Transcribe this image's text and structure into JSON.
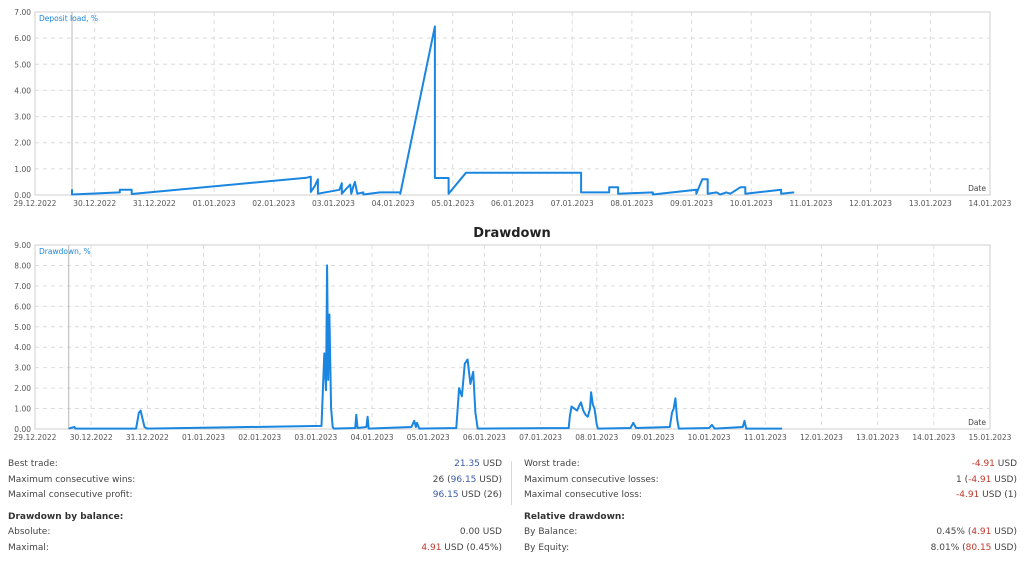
{
  "chart_data": [
    {
      "type": "line",
      "ylabel": "Deposit load, %",
      "xlabel": "Date",
      "ylim": [
        0,
        7
      ],
      "yticks": [
        "0.00",
        "1.00",
        "2.00",
        "3.00",
        "4.00",
        "5.00",
        "6.00",
        "7.00"
      ],
      "xticks": [
        "29.12.2022",
        "30.12.2022",
        "31.12.2022",
        "01.01.2023",
        "02.01.2023",
        "03.01.2023",
        "04.01.2023",
        "05.01.2023",
        "06.01.2023",
        "07.01.2023",
        "08.01.2023",
        "09.01.2023",
        "10.01.2023",
        "11.01.2023",
        "12.01.2023",
        "13.01.2023",
        "14.01.2023"
      ],
      "grid": true,
      "color": "#1a86e0",
      "points": [
        [
          0.62,
          0.22
        ],
        [
          0.62,
          0.02
        ],
        [
          1.42,
          0.1
        ],
        [
          1.42,
          0.2
        ],
        [
          1.62,
          0.2
        ],
        [
          1.62,
          0.04
        ],
        [
          4.55,
          0.66
        ],
        [
          4.62,
          0.7
        ],
        [
          4.62,
          0.12
        ],
        [
          4.69,
          0.35
        ],
        [
          4.74,
          0.6
        ],
        [
          4.74,
          0.05
        ],
        [
          5.1,
          0.2
        ],
        [
          5.14,
          0.45
        ],
        [
          5.14,
          0.05
        ],
        [
          5.28,
          0.4
        ],
        [
          5.3,
          0.05
        ],
        [
          5.33,
          0.3
        ],
        [
          5.36,
          0.5
        ],
        [
          5.4,
          0.05
        ],
        [
          5.5,
          0.1
        ],
        [
          5.5,
          0.02
        ],
        [
          5.78,
          0.1
        ],
        [
          6.12,
          0.1
        ],
        [
          6.12,
          0.05
        ],
        [
          6.7,
          6.45
        ],
        [
          6.7,
          0.65
        ],
        [
          6.93,
          0.65
        ],
        [
          6.93,
          0.05
        ],
        [
          7.22,
          0.85
        ],
        [
          9.15,
          0.85
        ],
        [
          9.15,
          0.1
        ],
        [
          9.62,
          0.1
        ],
        [
          9.62,
          0.3
        ],
        [
          9.77,
          0.3
        ],
        [
          9.77,
          0.05
        ],
        [
          10.35,
          0.1
        ],
        [
          10.35,
          0.02
        ],
        [
          11.08,
          0.2
        ],
        [
          11.08,
          0.05
        ],
        [
          11.18,
          0.6
        ],
        [
          11.27,
          0.6
        ],
        [
          11.27,
          0.05
        ],
        [
          11.42,
          0.1
        ],
        [
          11.48,
          0.02
        ],
        [
          11.58,
          0.1
        ],
        [
          11.65,
          0.05
        ],
        [
          11.82,
          0.3
        ],
        [
          11.9,
          0.3
        ],
        [
          11.9,
          0.05
        ],
        [
          12.5,
          0.2
        ],
        [
          12.5,
          0.05
        ],
        [
          12.72,
          0.1
        ]
      ]
    },
    {
      "type": "line",
      "title": "Drawdown",
      "ylabel": "Drawdown, %",
      "xlabel": "Date",
      "ylim": [
        0,
        9
      ],
      "yticks": [
        "0.00",
        "1.00",
        "2.00",
        "3.00",
        "4.00",
        "5.00",
        "6.00",
        "7.00",
        "8.00",
        "9.00"
      ],
      "xticks": [
        "29.12.2022",
        "30.12.2022",
        "31.12.2022",
        "01.01.2023",
        "02.01.2023",
        "03.01.2023",
        "04.01.2023",
        "05.01.2023",
        "06.01.2023",
        "07.01.2023",
        "08.01.2023",
        "09.01.2023",
        "10.01.2023",
        "11.01.2023",
        "12.01.2023",
        "13.01.2023",
        "14.01.2023",
        "15.01.2023"
      ],
      "grid": true,
      "color": "#1a86e0",
      "points": [
        [
          0.6,
          0.02
        ],
        [
          0.7,
          0.1
        ],
        [
          0.72,
          0.02
        ],
        [
          1.8,
          0.02
        ],
        [
          1.85,
          0.8
        ],
        [
          1.88,
          0.9
        ],
        [
          1.95,
          0.1
        ],
        [
          2.0,
          0.02
        ],
        [
          5.1,
          0.15
        ],
        [
          5.15,
          3.7
        ],
        [
          5.18,
          1.9
        ],
        [
          5.2,
          8.0
        ],
        [
          5.22,
          2.4
        ],
        [
          5.24,
          5.6
        ],
        [
          5.27,
          1.0
        ],
        [
          5.3,
          0.1
        ],
        [
          5.32,
          0.02
        ],
        [
          5.7,
          0.05
        ],
        [
          5.72,
          0.7
        ],
        [
          5.74,
          0.05
        ],
        [
          5.9,
          0.1
        ],
        [
          5.92,
          0.6
        ],
        [
          5.94,
          0.02
        ],
        [
          6.7,
          0.1
        ],
        [
          6.75,
          0.4
        ],
        [
          6.78,
          0.1
        ],
        [
          6.8,
          0.3
        ],
        [
          6.84,
          0.02
        ],
        [
          7.5,
          0.05
        ],
        [
          7.55,
          2.0
        ],
        [
          7.6,
          1.6
        ],
        [
          7.65,
          3.2
        ],
        [
          7.7,
          3.4
        ],
        [
          7.75,
          2.2
        ],
        [
          7.8,
          2.8
        ],
        [
          7.84,
          0.8
        ],
        [
          7.88,
          0.02
        ],
        [
          9.5,
          0.05
        ],
        [
          9.52,
          0.6
        ],
        [
          9.55,
          1.1
        ],
        [
          9.6,
          1.0
        ],
        [
          9.65,
          0.9
        ],
        [
          9.68,
          1.1
        ],
        [
          9.72,
          1.3
        ],
        [
          9.76,
          0.9
        ],
        [
          9.8,
          0.7
        ],
        [
          9.84,
          0.6
        ],
        [
          9.88,
          1.0
        ],
        [
          9.9,
          1.8
        ],
        [
          9.93,
          1.2
        ],
        [
          9.96,
          1.0
        ],
        [
          10.0,
          0.2
        ],
        [
          10.02,
          0.02
        ],
        [
          10.6,
          0.05
        ],
        [
          10.65,
          0.3
        ],
        [
          10.7,
          0.05
        ],
        [
          11.3,
          0.1
        ],
        [
          11.34,
          0.8
        ],
        [
          11.37,
          1.0
        ],
        [
          11.4,
          1.5
        ],
        [
          11.43,
          0.5
        ],
        [
          11.46,
          0.02
        ],
        [
          12.0,
          0.05
        ],
        [
          12.05,
          0.2
        ],
        [
          12.1,
          0.02
        ],
        [
          12.6,
          0.1
        ],
        [
          12.63,
          0.4
        ],
        [
          12.66,
          0.02
        ],
        [
          13.3,
          0.02
        ]
      ]
    }
  ],
  "stats": {
    "left": [
      {
        "label": "Best trade:",
        "parts": [
          {
            "t": "21.35",
            "c": "blue"
          },
          {
            "t": " USD",
            "c": ""
          }
        ]
      },
      {
        "label": "Maximum consecutive wins:",
        "parts": [
          {
            "t": "26 (",
            "c": ""
          },
          {
            "t": "96.15",
            "c": "blue"
          },
          {
            "t": " USD)",
            "c": ""
          }
        ]
      },
      {
        "label": "Maximal consecutive profit:",
        "parts": [
          {
            "t": "96.15",
            "c": "blue"
          },
          {
            "t": " USD (26)",
            "c": ""
          }
        ]
      }
    ],
    "left_head": "Drawdown by balance:",
    "left2": [
      {
        "label": "Absolute:",
        "parts": [
          {
            "t": "0.00 USD",
            "c": ""
          }
        ]
      },
      {
        "label": "Maximal:",
        "parts": [
          {
            "t": "4.91",
            "c": "red"
          },
          {
            "t": " USD (0.45%)",
            "c": ""
          }
        ]
      }
    ],
    "right": [
      {
        "label": "Worst trade:",
        "parts": [
          {
            "t": "-4.91",
            "c": "red"
          },
          {
            "t": " USD",
            "c": ""
          }
        ]
      },
      {
        "label": "Maximum consecutive losses:",
        "parts": [
          {
            "t": "1 (",
            "c": ""
          },
          {
            "t": "-4.91",
            "c": "red"
          },
          {
            "t": " USD)",
            "c": ""
          }
        ]
      },
      {
        "label": "Maximal consecutive loss:",
        "parts": [
          {
            "t": "-4.91",
            "c": "red"
          },
          {
            "t": " USD (1)",
            "c": ""
          }
        ]
      }
    ],
    "right_head": "Relative drawdown:",
    "right2": [
      {
        "label": "By Balance:",
        "parts": [
          {
            "t": "0.45% (",
            "c": ""
          },
          {
            "t": "4.91",
            "c": "red"
          },
          {
            "t": " USD)",
            "c": ""
          }
        ]
      },
      {
        "label": "By Equity:",
        "parts": [
          {
            "t": "8.01% (",
            "c": ""
          },
          {
            "t": "80.15",
            "c": "red"
          },
          {
            "t": " USD)",
            "c": ""
          }
        ]
      }
    ]
  }
}
